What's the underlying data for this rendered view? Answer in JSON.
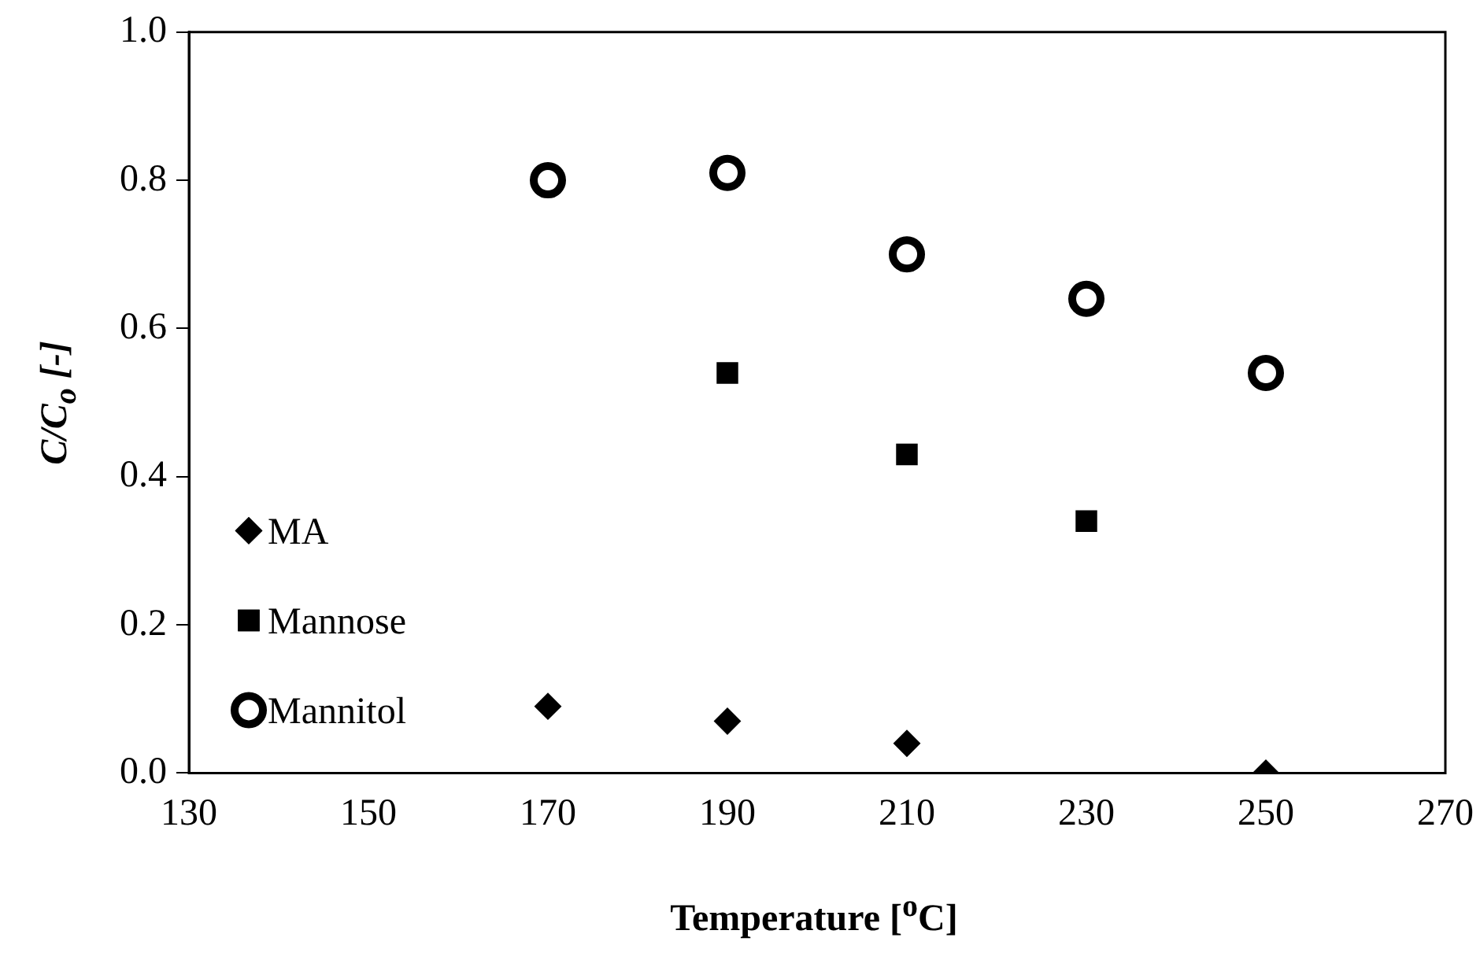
{
  "chart_data": {
    "type": "scatter",
    "xlabel": "Temperature [$^{o}$C]",
    "ylabel": "C/C$_{o}$ [-]",
    "xlim": [
      130,
      270
    ],
    "xticks": [
      130,
      150,
      170,
      190,
      210,
      230,
      250,
      270
    ],
    "ylim": [
      0,
      1
    ],
    "yticks": [
      {
        "value": 0,
        "label": "0.0"
      },
      {
        "value": 0.2,
        "label": "0.2"
      },
      {
        "value": 0.4,
        "label": "0.4"
      },
      {
        "value": 0.6,
        "label": "0.6"
      },
      {
        "value": 0.8,
        "label": "0.8"
      },
      {
        "value": 1,
        "label": "1.0"
      }
    ],
    "grid": false,
    "legend": "bottom left",
    "series": [
      {
        "name": "MA",
        "color": "#000000",
        "marker": "diamond",
        "x": [
          170,
          190,
          210,
          250
        ],
        "values": [
          0.09,
          0.07,
          0.04,
          0
        ]
      },
      {
        "name": "Mannose",
        "color": "#000000",
        "marker": "square",
        "x": [
          190,
          210,
          230
        ],
        "values": [
          0.54,
          0.43,
          0.34
        ]
      },
      {
        "name": "Mannitol",
        "color": "#000000",
        "marker": "circle",
        "x": [
          170,
          190,
          210,
          230,
          250
        ],
        "values": [
          0.8,
          0.81,
          0.7,
          0.64,
          0.54
        ]
      }
    ]
  }
}
